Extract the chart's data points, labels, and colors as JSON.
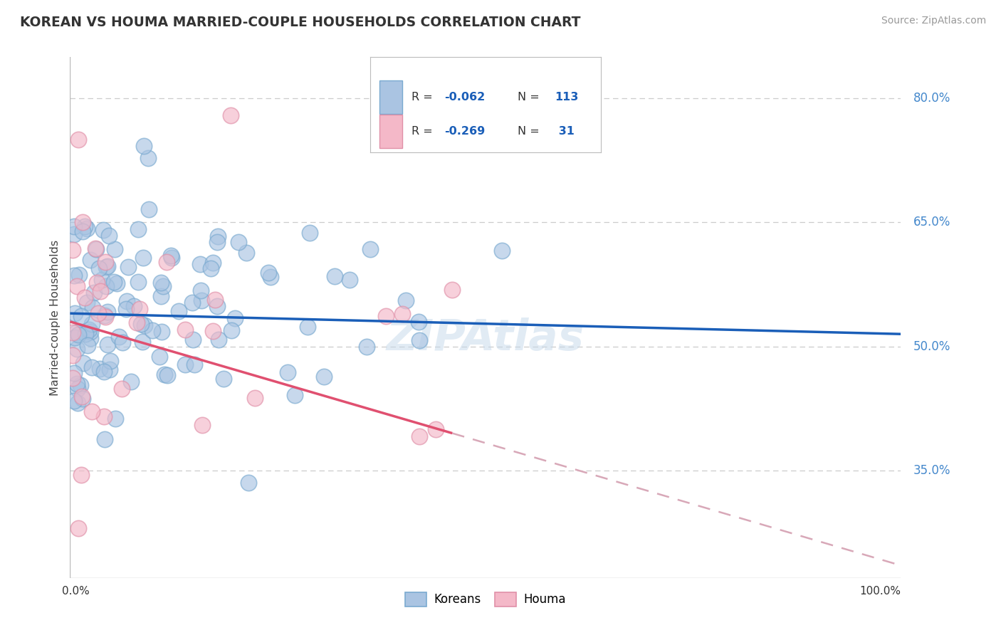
{
  "title": "KOREAN VS HOUMA MARRIED-COUPLE HOUSEHOLDS CORRELATION CHART",
  "source": "Source: ZipAtlas.com",
  "ylabel": "Married-couple Households",
  "xlim": [
    0,
    100
  ],
  "ylim": [
    22,
    85
  ],
  "yticks": [
    35,
    50,
    65,
    80
  ],
  "ytick_labels": [
    "35.0%",
    "50.0%",
    "65.0%",
    "80.0%"
  ],
  "xtick_labels": [
    "0.0%",
    "100.0%"
  ],
  "korean_R": -0.062,
  "korean_N": 113,
  "houma_R": -0.269,
  "houma_N": 31,
  "korean_color": "#aac4e2",
  "houma_color": "#f4b8c8",
  "korean_edge_color": "#7aaad0",
  "houma_edge_color": "#e090a8",
  "korean_line_color": "#1a5eb8",
  "houma_line_color": "#e05070",
  "houma_dash_color": "#d8a8b8",
  "watermark": "ZIPAtlas",
  "background_color": "#ffffff",
  "grid_color": "#cccccc",
  "title_color": "#333333",
  "korean_line_x0": 0,
  "korean_line_x1": 100,
  "korean_line_y0": 54.0,
  "korean_line_y1": 51.5,
  "houma_line_x0": 0,
  "houma_line_x1": 46,
  "houma_line_y0": 53.0,
  "houma_line_y1": 39.5,
  "houma_dash_x0": 46,
  "houma_dash_x1": 100,
  "houma_dash_y0": 39.5,
  "houma_dash_y1": 23.5
}
